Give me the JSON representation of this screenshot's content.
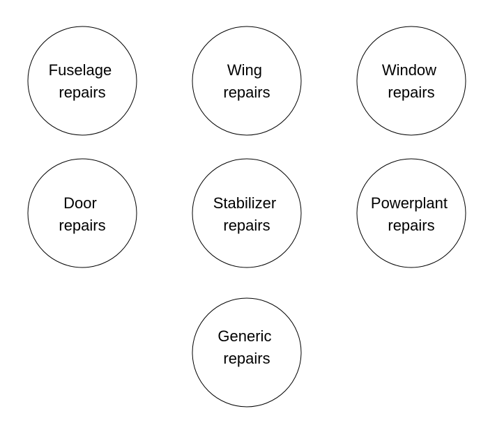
{
  "nodes": [
    {
      "id": "fuselage",
      "lines": [
        "Fuselage",
        "repairs"
      ]
    },
    {
      "id": "wing",
      "lines": [
        "Wing",
        "repairs"
      ]
    },
    {
      "id": "window",
      "lines": [
        "Window",
        "repairs"
      ]
    },
    {
      "id": "door",
      "lines": [
        "Door",
        "repairs"
      ]
    },
    {
      "id": "stabilizer",
      "lines": [
        "Stabilizer",
        "repairs"
      ]
    },
    {
      "id": "powerplant",
      "lines": [
        "Powerplant",
        "repairs"
      ]
    },
    {
      "id": "generic",
      "lines": [
        "Generic",
        "repairs"
      ]
    }
  ],
  "colors": {
    "stroke": "#000000",
    "fill": "#ffffff",
    "text": "#000000"
  }
}
